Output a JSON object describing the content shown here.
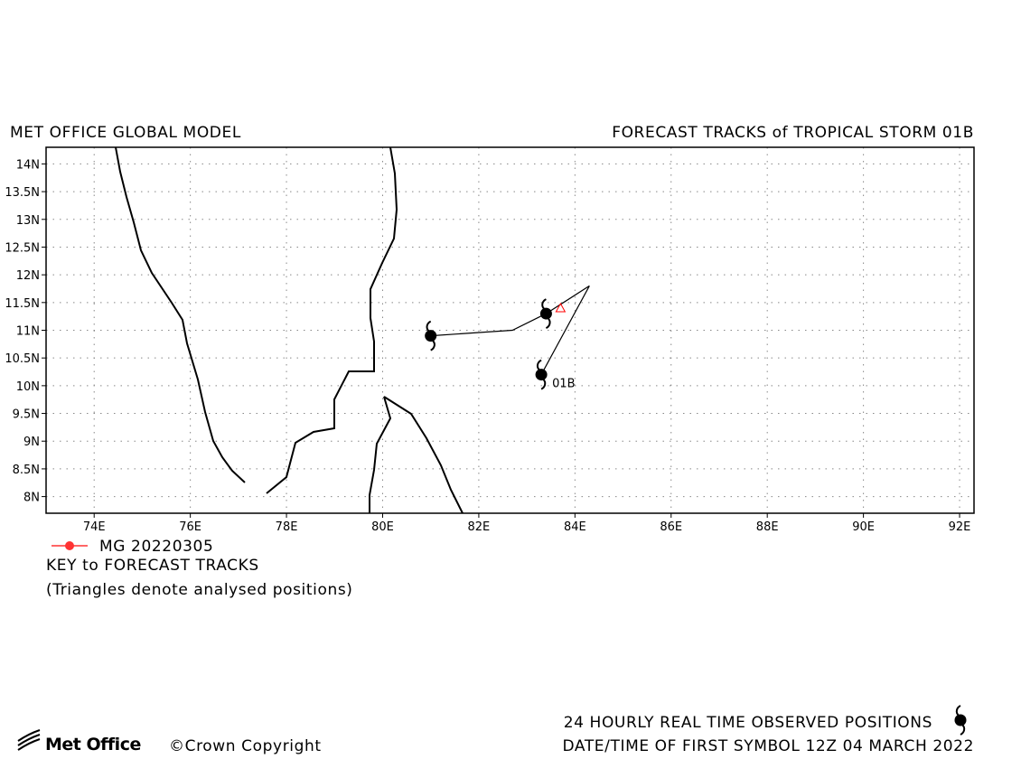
{
  "header": {
    "left_title": "MET OFFICE GLOBAL MODEL",
    "right_title": "FORECAST TRACKS of TROPICAL STORM 01B"
  },
  "map": {
    "lon_range": [
      73,
      92.3
    ],
    "lat_range": [
      7.7,
      14.3
    ],
    "lon_ticks": [
      "74E",
      "76E",
      "78E",
      "80E",
      "82E",
      "84E",
      "86E",
      "88E",
      "90E",
      "92E"
    ],
    "lat_ticks": [
      "14N",
      "13.5N",
      "13N",
      "12.5N",
      "12N",
      "11.5N",
      "11N",
      "10.5N",
      "10N",
      "9.5N",
      "9N",
      "8.5N",
      "8N"
    ],
    "grid": "dotted",
    "track": {
      "points": [
        {
          "lon": 81.0,
          "lat": 10.9
        },
        {
          "lon": 82.7,
          "lat": 11.0
        },
        {
          "lon": 83.4,
          "lat": 11.3
        },
        {
          "lon": 84.3,
          "lat": 11.8
        },
        {
          "lon": 83.3,
          "lat": 10.2
        }
      ],
      "storm_symbols": [
        {
          "lon": 81.0,
          "lat": 10.9
        },
        {
          "lon": 83.4,
          "lat": 11.3
        },
        {
          "lon": 83.3,
          "lat": 10.2
        }
      ],
      "analysed_triangle": {
        "lon": 83.7,
        "lat": 11.4
      },
      "label": {
        "text": "01B",
        "lon": 83.3,
        "lat": 10.2
      },
      "color": "#000000",
      "triangle_color": "#ff0000"
    }
  },
  "legend": {
    "entry": "MG 20220305",
    "entry_color": "#ff3333",
    "key_heading": "KEY to FORECAST TRACKS",
    "key_note": "(Triangles denote analysed positions)"
  },
  "footer": {
    "logo": "Met Office",
    "copyright": "©Crown Copyright",
    "observed": "24 HOURLY REAL TIME OBSERVED POSITIONS",
    "date": "DATE/TIME OF FIRST SYMBOL 12Z 04 MARCH 2022"
  }
}
